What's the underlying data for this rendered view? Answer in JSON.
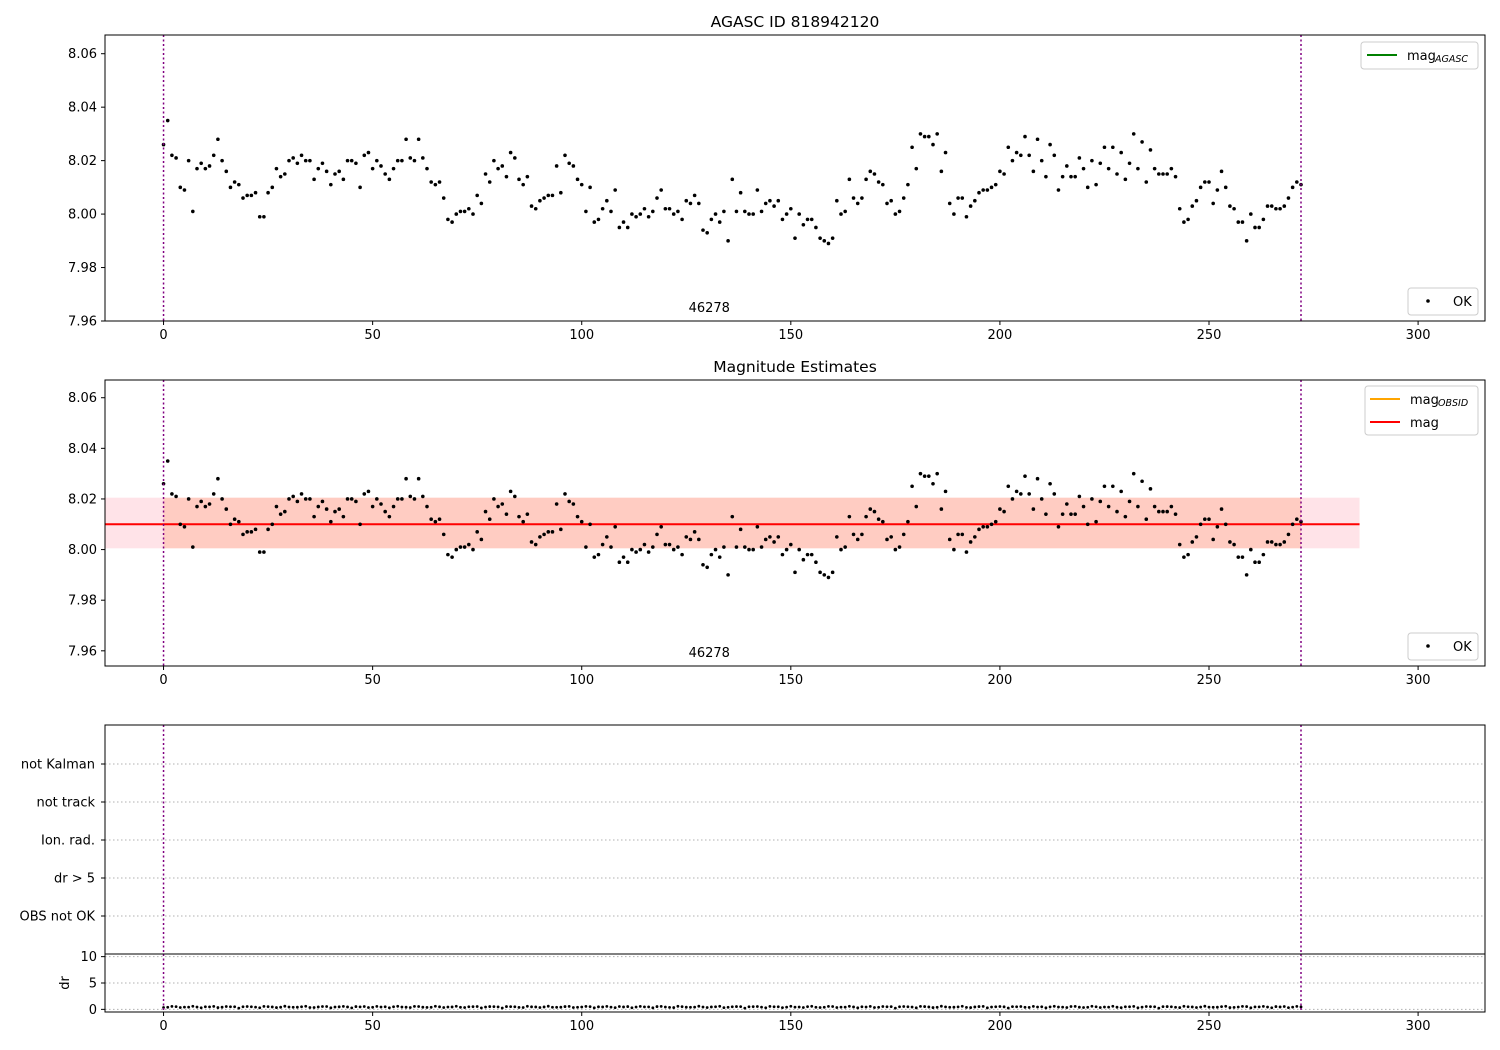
{
  "chart_data": [
    {
      "type": "scatter",
      "title": "AGASC ID 818942120",
      "annotation": "46278",
      "xlim": [
        -14,
        316
      ],
      "ylim": [
        7.96,
        8.067
      ],
      "xticks": [
        0,
        50,
        100,
        150,
        200,
        250,
        300
      ],
      "yticks": [
        7.96,
        7.98,
        8.0,
        8.02,
        8.04,
        8.06
      ],
      "vlines": [
        0,
        272
      ],
      "legend_upper": {
        "label": "mag",
        "subscript": "AGASC",
        "color": "#008000",
        "placement": "top-right"
      },
      "legend_lower": {
        "label": "OK",
        "placement": "bottom-right"
      },
      "series": [
        {
          "name": "OK",
          "color": "#000000",
          "x": [],
          "y": []
        }
      ]
    },
    {
      "type": "scatter",
      "title": "Magnitude Estimates",
      "annotation": "46278",
      "xlim": [
        -14,
        316
      ],
      "ylim": [
        7.954,
        8.067
      ],
      "xticks": [
        0,
        50,
        100,
        150,
        200,
        250,
        300
      ],
      "yticks": [
        7.96,
        7.98,
        8.0,
        8.02,
        8.04,
        8.06
      ],
      "vlines": [
        0,
        272
      ],
      "mag_line": 8.01,
      "band_outer": {
        "x": [
          -14,
          286
        ],
        "y": [
          8.0005,
          8.0205
        ],
        "color": "#ffc0cb"
      },
      "band_inner": {
        "x": [
          0,
          272
        ],
        "y": [
          8.0005,
          8.0205
        ],
        "color": "#ffa07a"
      },
      "legend_upper": [
        {
          "label": "mag",
          "subscript": "OBSID",
          "color": "#ffa500"
        },
        {
          "label": "mag",
          "subscript": "",
          "color": "#ff0000"
        }
      ],
      "legend_lower": {
        "label": "OK",
        "placement": "bottom-right"
      },
      "series": [
        {
          "name": "OK",
          "color": "#000000",
          "x": [],
          "y": []
        }
      ]
    },
    {
      "type": "scatter",
      "ylabels": [
        "not Kalman",
        "not track",
        "Ion. rad.",
        "dr > 5",
        "OBS not OK"
      ],
      "vlines": [
        0,
        272
      ],
      "xlim": [
        -14,
        316
      ]
    },
    {
      "type": "scatter",
      "ylabel": "dr",
      "xlim": [
        -14,
        316
      ],
      "ylim": [
        -0.5,
        10.5
      ],
      "yticks": [
        0,
        5,
        10
      ],
      "xticks": [
        0,
        50,
        100,
        150,
        200,
        250,
        300
      ],
      "vlines": [
        0,
        272
      ],
      "series": [
        {
          "name": "dr",
          "color": "#000000",
          "x": [],
          "y": []
        }
      ]
    }
  ]
}
